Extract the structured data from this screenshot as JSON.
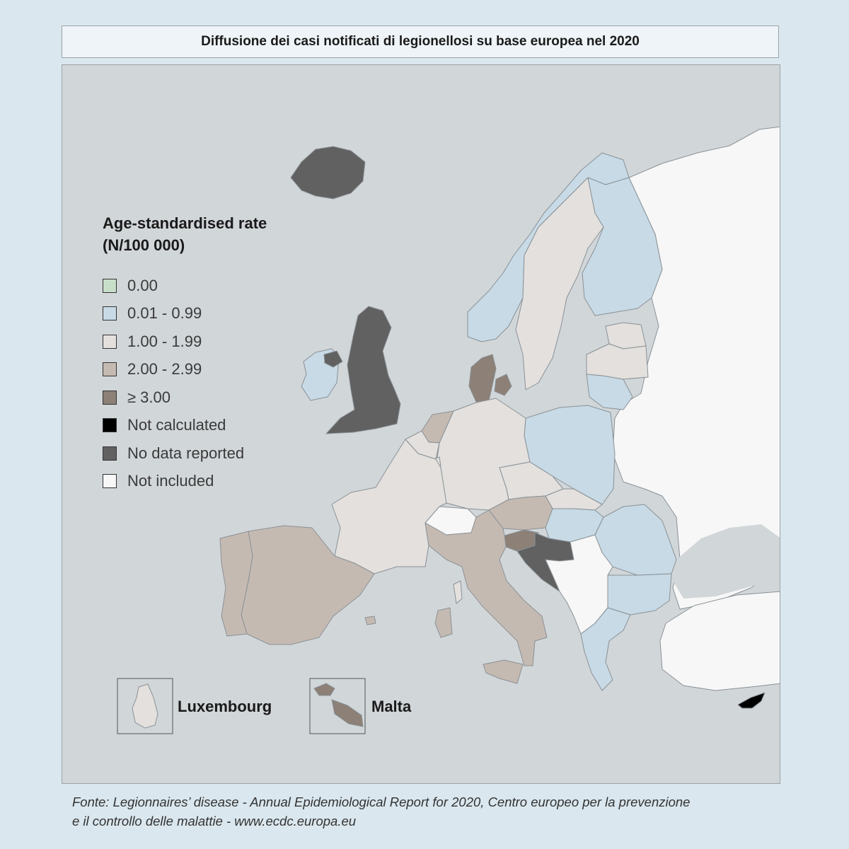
{
  "title": "Diffusione dei casi notificati di legionellosi su base europea nel 2020",
  "legend": {
    "title_line1": "Age-standardised rate",
    "title_line2": "(N/100 000)",
    "items": [
      {
        "label": "0.00",
        "color": "#c7dfc9"
      },
      {
        "label": "0.01 - 0.99",
        "color": "#c7dae6"
      },
      {
        "label": "1.00 - 1.99",
        "color": "#e3e0dd"
      },
      {
        "label": "2.00 - 2.99",
        "color": "#c5bab2"
      },
      {
        "label": "≥ 3.00",
        "color": "#8c8077"
      },
      {
        "label": "Not calculated",
        "color": "#000000"
      },
      {
        "label": "No data reported",
        "color": "#616161"
      },
      {
        "label": "Not included",
        "color": "#f7f7f7"
      }
    ]
  },
  "insets": {
    "luxembourg": "Luxembourg",
    "malta": "Malta"
  },
  "colors": {
    "sea": "#d1d6d9",
    "non_eu_land": "#f7f7f7",
    "border": "#8a9196"
  },
  "source": {
    "line1": "Fonte: Legionnaires’ disease - Annual Epidemiological Report for 2020, Centro europeo per la prevenzione",
    "line2": "e il controllo delle malattie - www.ecdc.europa.eu"
  }
}
